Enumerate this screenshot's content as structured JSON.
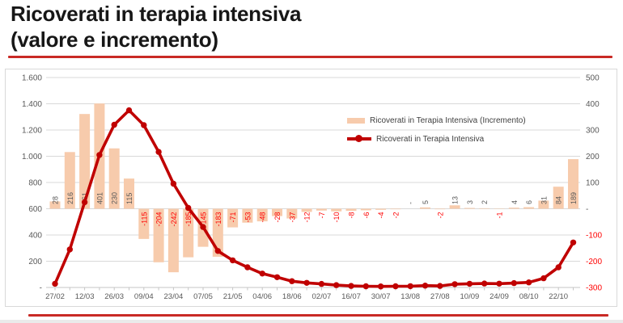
{
  "page": {
    "title_line1": "Ricoverati in terapia intensiva",
    "title_line2": "(valore e incremento)"
  },
  "legend": {
    "bars_label": "Ricoverati in Terapia Intensiva (Incremento)",
    "line_label": "Ricoverati in Terapia Intensiva"
  },
  "chart_data": {
    "type": "combo bar+line",
    "x_tick_labels": [
      "27/02",
      "12/03",
      "26/03",
      "09/04",
      "23/04",
      "07/05",
      "21/05",
      "04/06",
      "18/06",
      "02/07",
      "16/07",
      "30/07",
      "13/08",
      "27/08",
      "10/09",
      "24/09",
      "08/10",
      "22/10"
    ],
    "n_points": 36,
    "bars": {
      "name": "Ricoverati in Terapia Intensiva (Incremento)",
      "values": [
        28,
        216,
        361,
        401,
        230,
        115,
        -115,
        -204,
        -242,
        -185,
        -145,
        -183,
        -71,
        -53,
        -48,
        -28,
        -37,
        -12,
        -7,
        -10,
        -8,
        -6,
        -4,
        -2,
        0,
        5,
        -2,
        13,
        3,
        2,
        -1,
        4,
        6,
        31,
        84,
        189
      ],
      "labels": [
        "28",
        "216",
        "361",
        "401",
        "230",
        "115",
        "-115",
        "-204",
        "-242",
        "-185",
        "-145",
        "-183",
        "-71",
        "-53",
        "-48",
        "-28",
        "-37",
        "-12",
        "-7",
        "-10",
        "-8",
        "-6",
        "-4",
        "-2",
        "-",
        "5",
        "-2",
        "13",
        "3",
        "2",
        "-1",
        "4",
        "6",
        "31",
        "84",
        "189"
      ]
    },
    "line": {
      "name": "Ricoverati in Terapia Intensiva",
      "values": [
        28,
        290,
        650,
        1010,
        1240,
        1350,
        1237,
        1033,
        791,
        606,
        461,
        278,
        207,
        154,
        106,
        78,
        48,
        35,
        27,
        18,
        12,
        9,
        8,
        9,
        10,
        14,
        12,
        25,
        28,
        30,
        29,
        33,
        39,
        70,
        154,
        343
      ]
    },
    "left_axis": {
      "ticks": [
        "1.600",
        "1.400",
        "1.200",
        "1.000",
        "800",
        "600",
        "400",
        "200",
        "-"
      ],
      "min": 0,
      "max": 1600
    },
    "right_axis": {
      "ticks": [
        "500",
        "400",
        "300",
        "200",
        "100",
        "-",
        "-100",
        "-200",
        "-300"
      ],
      "min": -300,
      "max": 500
    },
    "grid": true,
    "legend_position": "inside top-right",
    "colors": {
      "bar": "#f7cbac",
      "line": "#c00000",
      "negative_label": "#ff0000",
      "axis_text": "#595959",
      "gridline": "#d9d9d9",
      "axis_line": "#c6c6c6",
      "accent_rule": "#c92a25",
      "legend_text": "#3f3f3f"
    }
  }
}
